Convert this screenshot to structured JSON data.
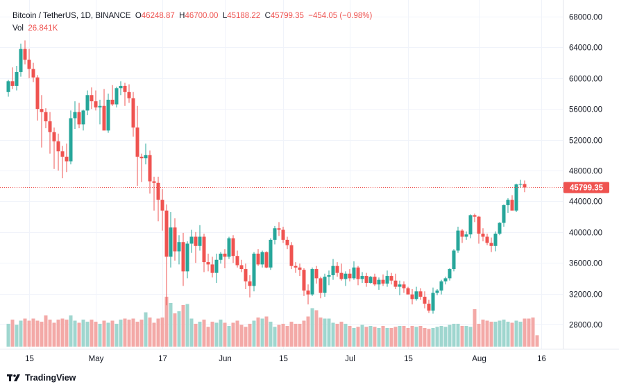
{
  "legend": {
    "symbol": "Bitcoin / TetherUS, 1D, BINANCE",
    "o_label": "O",
    "o_value": "46248.87",
    "h_label": "H",
    "h_value": "46700.00",
    "l_label": "L",
    "l_value": "45188.22",
    "c_label": "C",
    "c_value": "45799.35",
    "change": "−454.05 (−0.98%)",
    "vol_label": "Vol",
    "vol_value": "26.841K"
  },
  "branding": {
    "name": "TradingView",
    "logo_text": "17"
  },
  "colors": {
    "up": "#26a69a",
    "down": "#ef5350",
    "up_vol": "#9fd6cf",
    "down_vol": "#f3a9a7",
    "grid": "#f0f3fa",
    "text": "#131722",
    "price_line": "#ef5350"
  },
  "chart_data": {
    "type": "candlestick",
    "title": "Bitcoin / TetherUS, 1D, BINANCE",
    "ylim": [
      24000,
      69000
    ],
    "yticks": [
      28000,
      32000,
      36000,
      40000,
      44000,
      48000,
      52000,
      56000,
      60000,
      64000,
      68000
    ],
    "ytick_labels": [
      "28000.00",
      "32000.00",
      "36000.00",
      "40000.00",
      "44000.00",
      "48000.00",
      "52000.00",
      "56000.00",
      "60000.00",
      "64000.00",
      "68000.00"
    ],
    "xticks": [
      {
        "label": "15",
        "day": 5
      },
      {
        "label": "May",
        "day": 21
      },
      {
        "label": "17",
        "day": 37
      },
      {
        "label": "Jun",
        "day": 52
      },
      {
        "label": "15",
        "day": 66
      },
      {
        "label": "Jul",
        "day": 82
      },
      {
        "label": "15",
        "day": 96
      },
      {
        "label": "Aug",
        "day": 113
      },
      {
        "label": "16",
        "day": 128
      }
    ],
    "last_price": 45799.35,
    "last_price_label": "45799.35",
    "candles_ohlc": [
      [
        58200,
        59800,
        57600,
        59600
      ],
      [
        59600,
        61400,
        58600,
        59000
      ],
      [
        59000,
        61600,
        58400,
        60800
      ],
      [
        60800,
        64500,
        60200,
        63800
      ],
      [
        63800,
        64900,
        61800,
        62400
      ],
      [
        62400,
        63800,
        60000,
        61200
      ],
      [
        61200,
        62000,
        59500,
        60100
      ],
      [
        60100,
        60400,
        54500,
        56000
      ],
      [
        56000,
        57800,
        51000,
        55600
      ],
      [
        55600,
        56100,
        53500,
        54400
      ],
      [
        54400,
        55600,
        50200,
        53000
      ],
      [
        53000,
        53600,
        48200,
        51800
      ],
      [
        51800,
        52800,
        48000,
        50500
      ],
      [
        50500,
        51200,
        47000,
        49800
      ],
      [
        49800,
        51500,
        47800,
        49200
      ],
      [
        49200,
        55800,
        48800,
        54800
      ],
      [
        54800,
        57000,
        53400,
        55600
      ],
      [
        55600,
        56800,
        53500,
        54000
      ],
      [
        54000,
        55900,
        53200,
        55800
      ],
      [
        55800,
        58400,
        55200,
        57800
      ],
      [
        57800,
        58800,
        56000,
        57000
      ],
      [
        57000,
        58400,
        55800,
        56200
      ],
      [
        56200,
        57200,
        54000,
        56400
      ],
      [
        56400,
        58600,
        55600,
        53200
      ],
      [
        53200,
        58000,
        52900,
        57200
      ],
      [
        57200,
        59100,
        56400,
        56600
      ],
      [
        56600,
        58900,
        56200,
        58700
      ],
      [
        58700,
        59600,
        57800,
        59000
      ],
      [
        59000,
        59400,
        56400,
        58200
      ],
      [
        58200,
        59200,
        56800,
        57400
      ],
      [
        57400,
        58200,
        52400,
        53600
      ],
      [
        53600,
        56400,
        46000,
        49800
      ],
      [
        49800,
        50200,
        46500,
        49600
      ],
      [
        49600,
        51500,
        48800,
        50000
      ],
      [
        50000,
        50600,
        45000,
        46600
      ],
      [
        46600,
        47200,
        42800,
        46400
      ],
      [
        46400,
        47200,
        41400,
        44200
      ],
      [
        44200,
        45600,
        40200,
        42800
      ],
      [
        42800,
        43600,
        30500,
        36800
      ],
      [
        36800,
        42600,
        35400,
        40600
      ],
      [
        40600,
        41800,
        36300,
        37500
      ],
      [
        37500,
        39600,
        35800,
        38700
      ],
      [
        38700,
        39900,
        33000,
        34900
      ],
      [
        34900,
        38800,
        34000,
        38500
      ],
      [
        38500,
        40300,
        37300,
        39400
      ],
      [
        39400,
        40000,
        36000,
        38200
      ],
      [
        38200,
        40900,
        37600,
        39400
      ],
      [
        39400,
        39800,
        34800,
        36100
      ],
      [
        36100,
        37200,
        34900,
        35800
      ],
      [
        35800,
        36800,
        34100,
        34700
      ],
      [
        34700,
        37200,
        33400,
        36400
      ],
      [
        36400,
        37400,
        35900,
        37200
      ],
      [
        37200,
        37800,
        35300,
        36800
      ],
      [
        36800,
        39400,
        36500,
        39200
      ],
      [
        39200,
        39600,
        36000,
        36900
      ],
      [
        36900,
        37600,
        35400,
        35700
      ],
      [
        35700,
        36400,
        34800,
        35200
      ],
      [
        35200,
        35900,
        32600,
        33600
      ],
      [
        33600,
        34400,
        31500,
        33000
      ],
      [
        33000,
        37400,
        32300,
        37200
      ],
      [
        37200,
        37800,
        35600,
        35800
      ],
      [
        35800,
        37600,
        35400,
        37400
      ],
      [
        37400,
        37500,
        35300,
        35400
      ],
      [
        35400,
        39200,
        35100,
        39000
      ],
      [
        39000,
        40800,
        38400,
        40500
      ],
      [
        40500,
        41300,
        39500,
        40300
      ],
      [
        40300,
        40700,
        38600,
        39000
      ],
      [
        39000,
        39400,
        37800,
        38300
      ],
      [
        38300,
        38700,
        35200,
        35600
      ],
      [
        35600,
        36100,
        34700,
        35400
      ],
      [
        35400,
        35900,
        34300,
        35100
      ],
      [
        35100,
        35300,
        31700,
        32400
      ],
      [
        32400,
        33200,
        30600,
        31900
      ],
      [
        31900,
        35400,
        31700,
        35200
      ],
      [
        35200,
        35600,
        33300,
        34000
      ],
      [
        34000,
        34200,
        31400,
        32100
      ],
      [
        32100,
        34600,
        31600,
        34200
      ],
      [
        34200,
        35000,
        33100,
        34400
      ],
      [
        34400,
        36500,
        33800,
        35600
      ],
      [
        35600,
        36100,
        34200,
        34700
      ],
      [
        34700,
        35900,
        33700,
        33900
      ],
      [
        33900,
        34900,
        33000,
        34600
      ],
      [
        34600,
        35200,
        33600,
        34000
      ],
      [
        34000,
        36200,
        33800,
        35400
      ],
      [
        35400,
        35600,
        33100,
        33900
      ],
      [
        33900,
        34800,
        33400,
        34300
      ],
      [
        34300,
        34700,
        32900,
        33400
      ],
      [
        33400,
        34300,
        33300,
        34200
      ],
      [
        34200,
        34600,
        33000,
        33200
      ],
      [
        33200,
        34100,
        32500,
        33800
      ],
      [
        33800,
        34500,
        33000,
        33300
      ],
      [
        33300,
        35000,
        32900,
        34300
      ],
      [
        34300,
        34700,
        33200,
        33700
      ],
      [
        33700,
        34600,
        32600,
        32900
      ],
      [
        32900,
        33700,
        31800,
        33200
      ],
      [
        33200,
        33600,
        32100,
        32700
      ],
      [
        32700,
        32900,
        31900,
        31900
      ],
      [
        31900,
        32600,
        30600,
        31300
      ],
      [
        31300,
        32900,
        31100,
        32300
      ],
      [
        32300,
        32700,
        31200,
        31600
      ],
      [
        31600,
        32300,
        30100,
        30700
      ],
      [
        30700,
        31200,
        29500,
        29800
      ],
      [
        29800,
        32800,
        29400,
        32100
      ],
      [
        32100,
        32600,
        31800,
        32400
      ],
      [
        32400,
        33800,
        31900,
        33600
      ],
      [
        33600,
        34200,
        33200,
        34000
      ],
      [
        34000,
        35300,
        33700,
        35200
      ],
      [
        35200,
        37800,
        34900,
        37600
      ],
      [
        37600,
        40700,
        37300,
        40200
      ],
      [
        40200,
        40400,
        38600,
        39400
      ],
      [
        39400,
        40100,
        39000,
        39700
      ],
      [
        39700,
        42300,
        39200,
        42200
      ],
      [
        42200,
        42400,
        41300,
        42000
      ],
      [
        42000,
        42100,
        38500,
        39800
      ],
      [
        39800,
        40500,
        38800,
        39400
      ],
      [
        39400,
        39800,
        38300,
        38600
      ],
      [
        38600,
        39300,
        37400,
        38200
      ],
      [
        38200,
        40100,
        37500,
        39800
      ],
      [
        39800,
        41300,
        39600,
        41200
      ],
      [
        41200,
        43600,
        40700,
        43500
      ],
      [
        43500,
        44400,
        42500,
        44200
      ],
      [
        44200,
        44800,
        43000,
        42800
      ],
      [
        42800,
        46300,
        42600,
        46200
      ],
      [
        46200,
        46800,
        45800,
        46248.87
      ],
      [
        46248.87,
        46700,
        45188.22,
        45799.35
      ]
    ],
    "volumes": [
      22,
      26,
      21,
      25,
      27,
      25,
      27,
      25,
      24,
      30,
      26,
      23,
      26,
      27,
      26,
      30,
      25,
      23,
      26,
      24,
      26,
      24,
      22,
      25,
      23,
      25,
      22,
      26,
      27,
      26,
      27,
      24,
      26,
      33,
      28,
      23,
      27,
      28,
      48,
      42,
      32,
      34,
      40,
      41,
      27,
      22,
      24,
      26,
      19,
      24,
      23,
      26,
      23,
      20,
      23,
      25,
      21,
      19,
      22,
      25,
      28,
      27,
      29,
      24,
      19,
      21,
      22,
      20,
      24,
      22,
      22,
      25,
      29,
      37,
      35,
      28,
      27,
      27,
      23,
      22,
      24,
      22,
      20,
      18,
      19,
      21,
      19,
      20,
      19,
      18,
      20,
      18,
      18,
      19,
      20,
      20,
      18,
      20,
      19,
      20,
      18,
      17,
      18,
      19,
      20,
      19,
      21,
      22,
      22,
      20,
      20,
      19,
      36,
      22,
      26,
      25,
      24,
      24,
      25,
      26,
      24,
      23,
      25,
      24,
      27,
      27,
      28,
      11
    ]
  }
}
